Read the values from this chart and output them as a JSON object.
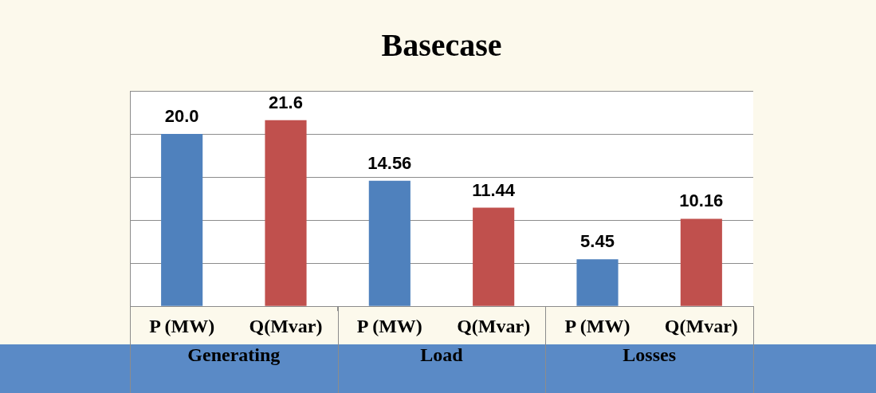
{
  "chart_data": {
    "type": "bar",
    "title": "Basecase",
    "categories": [
      "P (MW)",
      "Q(Mvar)",
      "P (MW)",
      "Q(Mvar)",
      "P (MW)",
      "Q(Mvar)"
    ],
    "values": [
      20.0,
      21.6,
      14.56,
      11.44,
      5.45,
      10.16
    ],
    "value_labels": [
      "20.0",
      "21.6",
      "14.56",
      "11.44",
      "5.45",
      "10.16"
    ],
    "colors": [
      "#4f81bd",
      "#c0504d",
      "#4f81bd",
      "#c0504d",
      "#4f81bd",
      "#c0504d"
    ],
    "ylim": [
      0,
      25
    ],
    "yticks": [
      {
        "value": 0,
        "label": null
      },
      {
        "value": 5,
        "label": null
      },
      {
        "value": 10,
        "label": null
      },
      {
        "value": 15,
        "label": null
      },
      {
        "value": 20,
        "label": null
      },
      {
        "value": 25,
        "label": null
      }
    ],
    "tick_labels": "x",
    "grid": "y",
    "legend": false,
    "annotations": [
      "Generating",
      "Load",
      "Losses"
    ]
  }
}
